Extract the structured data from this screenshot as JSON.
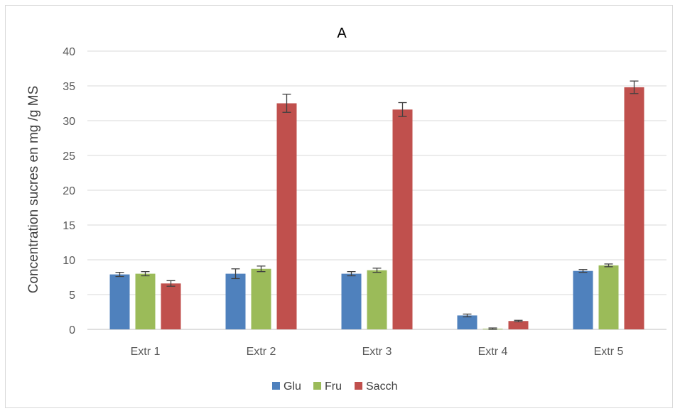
{
  "chart_data": {
    "type": "bar",
    "title": "A",
    "xlabel": "",
    "ylabel": "Concentration sucres en mg /g MS",
    "ylim": [
      0,
      40
    ],
    "yticks": [
      0,
      5,
      10,
      15,
      20,
      25,
      30,
      35,
      40
    ],
    "grid": true,
    "legend_position": "bottom",
    "categories": [
      "Extr 1",
      "Extr 2",
      "Extr 3",
      "Extr 4",
      "Extr 5"
    ],
    "series": [
      {
        "name": "Glu",
        "color": "#4f81bd",
        "values": [
          7.9,
          8.0,
          8.0,
          2.0,
          8.4
        ],
        "errors": [
          0.3,
          0.7,
          0.3,
          0.2,
          0.2
        ]
      },
      {
        "name": "Fru",
        "color": "#9bbb59",
        "values": [
          8.0,
          8.7,
          8.5,
          0.1,
          9.2
        ],
        "errors": [
          0.3,
          0.4,
          0.3,
          0.1,
          0.2
        ]
      },
      {
        "name": "Sacch",
        "color": "#c0504d",
        "values": [
          6.6,
          32.5,
          31.6,
          1.2,
          34.8
        ],
        "errors": [
          0.4,
          1.3,
          1.0,
          0.1,
          0.9
        ]
      }
    ]
  }
}
